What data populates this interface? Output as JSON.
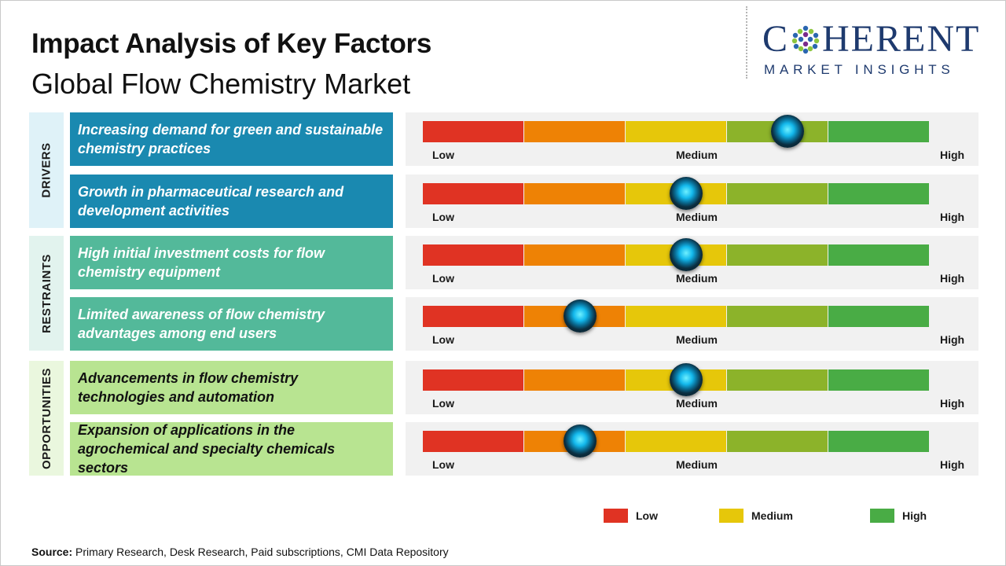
{
  "header": {
    "title": "Impact Analysis of Key Factors",
    "subtitle": "Global Flow Chemistry Market"
  },
  "logo": {
    "part1": "C",
    "part2": "HERENT",
    "tagline": "MARKET INSIGHTS"
  },
  "colors": {
    "drivers_bg": "#1a89b0",
    "restraints_bg": "#53b99a",
    "opportunities_bg": "#b8e491",
    "drivers_cat_bg": "#dff2f8",
    "restraints_cat_bg": "#e2f3ee",
    "opportunities_cat_bg": "#eaf7de",
    "scale": [
      "#e03323",
      "#ee8205",
      "#e6c70a",
      "#8cb32a",
      "#49ac45"
    ]
  },
  "chart_data": {
    "type": "table",
    "scale_labels": {
      "low": "Low",
      "medium": "Medium",
      "high": "High"
    },
    "scale_min": 0,
    "scale_max": 5,
    "categories": [
      {
        "name": "DRIVERS",
        "factors": [
          {
            "label": "Increasing demand for green and sustainable chemistry practices",
            "impact": 3.6
          },
          {
            "label": "Growth in pharmaceutical research and development activities",
            "impact": 2.6
          }
        ]
      },
      {
        "name": "RESTRAINTS",
        "factors": [
          {
            "label": "High initial investment costs for flow chemistry equipment",
            "impact": 2.6
          },
          {
            "label": "Limited awareness of flow chemistry advantages among end users",
            "impact": 1.55
          }
        ]
      },
      {
        "name": "OPPORTUNITIES",
        "factors": [
          {
            "label": "Advancements in flow chemistry technologies and automation",
            "impact": 2.6
          },
          {
            "label": "Expansion of applications in the agrochemical and specialty chemicals sectors",
            "impact": 1.55
          }
        ]
      }
    ],
    "legend": [
      {
        "label": "Low",
        "color": "#e03323"
      },
      {
        "label": "Medium",
        "color": "#e6c70a"
      },
      {
        "label": "High",
        "color": "#49ac45"
      }
    ]
  },
  "source": {
    "prefix": "Source:",
    "text": " Primary Research, Desk Research, Paid subscriptions, CMI Data Repository"
  }
}
